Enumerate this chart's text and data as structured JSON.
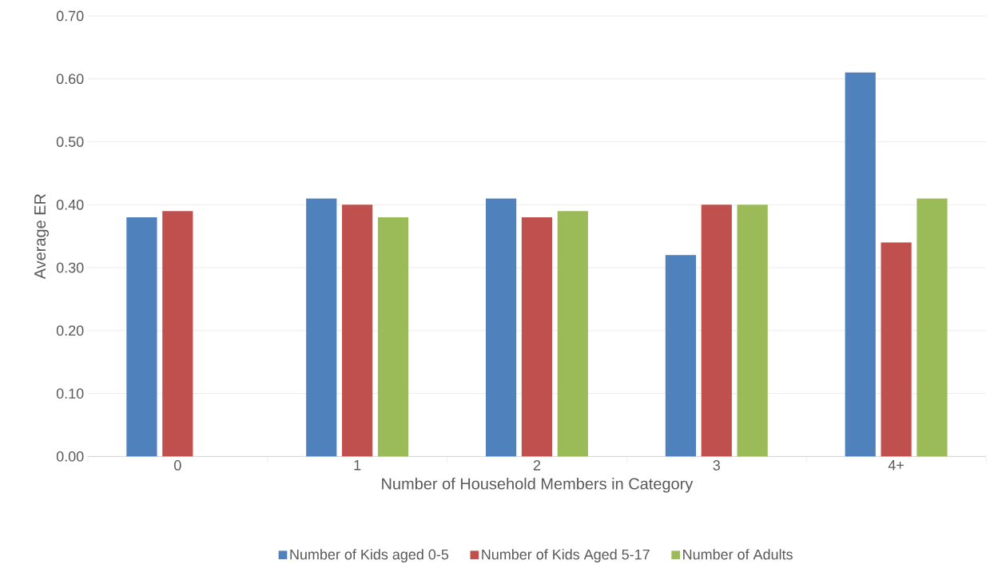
{
  "chart_data": {
    "type": "bar",
    "xlabel": "Number of Household Members in Category",
    "ylabel": "Average ER",
    "categories": [
      "0",
      "1",
      "2",
      "3",
      "4+"
    ],
    "series": [
      {
        "name": "Number of Kids aged 0-5",
        "color": "#4f81bd",
        "values": [
          0.38,
          0.41,
          0.41,
          0.32,
          0.61
        ]
      },
      {
        "name": "Number of Kids Aged 5-17",
        "color": "#c0504d",
        "values": [
          0.39,
          0.4,
          0.38,
          0.4,
          0.34
        ]
      },
      {
        "name": "Number of Adults",
        "color": "#9bbb59",
        "values": [
          null,
          0.38,
          0.39,
          0.4,
          0.41
        ]
      }
    ],
    "ylim": [
      0,
      0.7
    ],
    "yticks": [
      {
        "value": 0,
        "label": "0.00"
      },
      {
        "value": 0.1,
        "label": "0.10"
      },
      {
        "value": 0.2,
        "label": "0.20"
      },
      {
        "value": 0.3,
        "label": "0.30"
      },
      {
        "value": 0.4,
        "label": "0.40"
      },
      {
        "value": 0.5,
        "label": "0.50"
      },
      {
        "value": 0.6,
        "label": "0.60"
      },
      {
        "value": 0.7,
        "label": "0.70"
      }
    ],
    "grid": "y",
    "legend": "bottom"
  }
}
